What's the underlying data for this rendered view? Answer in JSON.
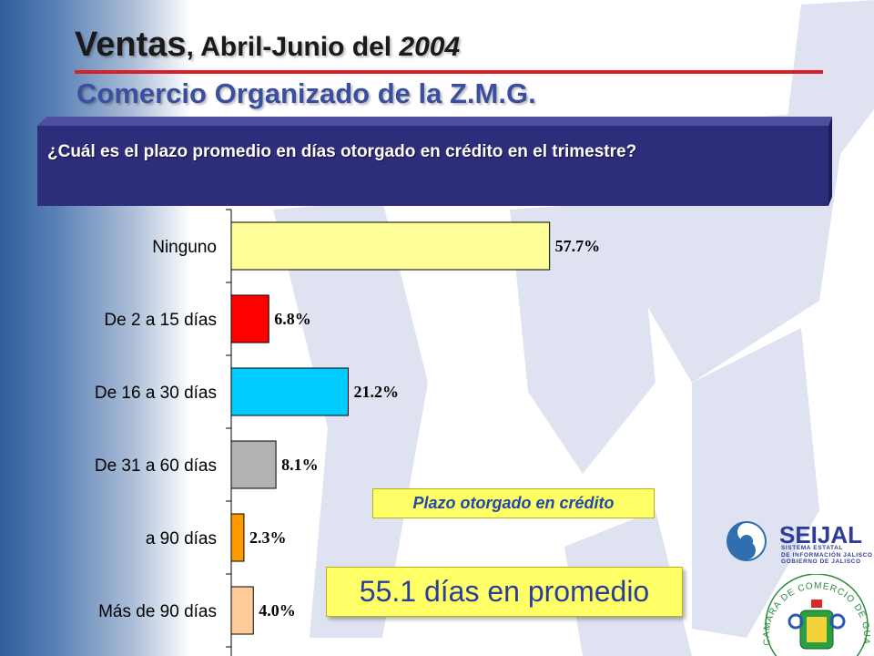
{
  "header": {
    "title_main": "Ventas",
    "title_rest": ", Abril-Junio del ",
    "title_year": "2004",
    "subtitle": "Comercio Organizado de la Z.M.G."
  },
  "question": "¿Cuál es el plazo promedio en días otorgado en crédito en el trimestre?",
  "legend_label": "Plazo otorgado en crédito",
  "average_label": "55.1 días en promedio",
  "logos": {
    "seijal": {
      "text": "SEIJAL",
      "sub1": "SISTEMA ESTATAL",
      "sub2": "DE INFORMACIÓN JALISCO",
      "sub3": "GOBIERNO DE JALISCO"
    },
    "camara": {
      "text": "CAMARA DE COMERCIO DE GUADALAJARA"
    }
  },
  "chart_data": {
    "type": "bar",
    "orientation": "horizontal",
    "categories": [
      "Ninguno",
      "De 2 a 15 días",
      "De 16 a 30 días",
      "De 31 a 60 días",
      "a 90 días",
      "Más de 90 días"
    ],
    "values": [
      57.7,
      6.8,
      21.2,
      8.1,
      2.3,
      4.0
    ],
    "value_labels": [
      "57.7%",
      "6.8%",
      "21.2%",
      "8.1%",
      "2.3%",
      "4.0%"
    ],
    "colors": [
      "#ffff99",
      "#ff0000",
      "#00ccff",
      "#b2b2b2",
      "#ff9900",
      "#ffcc99"
    ],
    "unit": "%",
    "xlim": [
      0,
      100
    ],
    "grid": false
  }
}
